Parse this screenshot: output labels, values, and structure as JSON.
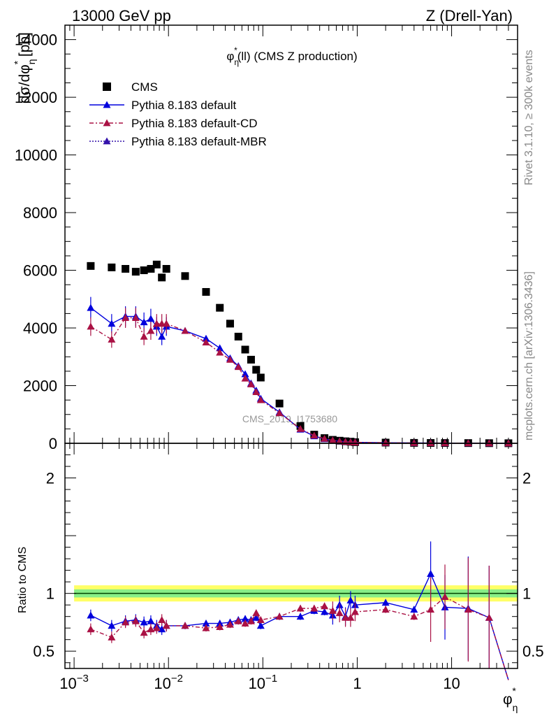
{
  "header": {
    "left": "13000 GeV pp",
    "right": "Z (Drell-Yan)"
  },
  "side_labels": {
    "top": "Rivet 3.1.10, ≥ 300k events",
    "bottom": "mcplots.cern.ch [arXiv:1306.3436]"
  },
  "watermark": "CMS_2019_I1753680",
  "chart_data": [
    {
      "id": "main",
      "type": "scatter",
      "title": "φ*η(ll) (CMS Z production)",
      "title_parts": {
        "base": "φ",
        "sup": "*",
        "sub": "η",
        "rest": "(ll) (CMS Z production)"
      },
      "ylabel": "dσ/dφ*η [pb]",
      "ylabel_parts": {
        "a": "dσ/dφ",
        "sup": "*",
        "sub": "η",
        "b": " [pb]"
      },
      "xscale": "log",
      "xlim": [
        0.0008,
        50
      ],
      "ylim": [
        0,
        14500
      ],
      "yticks": [
        0,
        2000,
        4000,
        6000,
        8000,
        10000,
        12000,
        14000
      ],
      "ytick_labels": [
        "0",
        "2000",
        "4000",
        "6000",
        "8000",
        "10000",
        "12000",
        "14000"
      ],
      "legend_position": "top-left",
      "series": [
        {
          "name": "CMS",
          "style": "data",
          "color": "#000000",
          "x": [
            0.0015,
            0.0025,
            0.0035,
            0.0045,
            0.0055,
            0.0065,
            0.0075,
            0.0085,
            0.0095,
            0.015,
            0.025,
            0.035,
            0.045,
            0.055,
            0.065,
            0.075,
            0.085,
            0.095,
            0.15,
            0.25,
            0.35,
            0.45,
            0.55,
            0.65,
            0.75,
            0.85,
            0.95,
            2,
            4,
            6,
            8.5,
            15,
            25,
            40
          ],
          "y": [
            6150,
            6100,
            6050,
            5950,
            6000,
            6050,
            6200,
            5750,
            6050,
            5800,
            5250,
            4700,
            4150,
            3700,
            3250,
            2900,
            2550,
            2280,
            1380,
            600,
            300,
            180,
            120,
            90,
            70,
            55,
            40,
            25,
            15,
            12,
            10,
            8,
            5,
            3
          ]
        },
        {
          "name": "Pythia 8.183 default",
          "style": "solid",
          "color": "#0000dd",
          "x": [
            0.0015,
            0.0025,
            0.0035,
            0.0045,
            0.0055,
            0.0065,
            0.0075,
            0.0085,
            0.0095,
            0.015,
            0.025,
            0.035,
            0.045,
            0.055,
            0.065,
            0.075,
            0.085,
            0.095,
            0.15,
            0.25,
            0.35,
            0.45,
            0.55,
            0.65,
            0.75,
            0.85,
            0.95,
            2,
            4,
            6,
            8.5,
            15,
            25,
            40
          ],
          "y": [
            4700,
            4150,
            4400,
            4400,
            4200,
            4320,
            4050,
            3700,
            4050,
            3900,
            3630,
            3300,
            2950,
            2680,
            2400,
            2080,
            1830,
            1550,
            1080,
            480,
            250,
            150,
            100,
            75,
            55,
            45,
            35,
            20,
            12,
            10,
            8,
            6,
            4,
            0
          ]
        },
        {
          "name": "Pythia 8.183 default-CD",
          "style": "dashdot",
          "color": "#aa1144",
          "x": [
            0.0015,
            0.0025,
            0.0035,
            0.0045,
            0.0055,
            0.0065,
            0.0075,
            0.0085,
            0.0095,
            0.015,
            0.025,
            0.035,
            0.045,
            0.055,
            0.065,
            0.075,
            0.085,
            0.095,
            0.15,
            0.25,
            0.35,
            0.45,
            0.55,
            0.65,
            0.75,
            0.85,
            0.95,
            2,
            4,
            6,
            8.5,
            15,
            25,
            40
          ],
          "y": [
            4050,
            3600,
            4350,
            4350,
            3700,
            3900,
            4150,
            4150,
            4150,
            3900,
            3500,
            3150,
            2900,
            2650,
            2250,
            2050,
            1780,
            1500,
            1050,
            500,
            270,
            160,
            105,
            75,
            55,
            45,
            35,
            20,
            12,
            10,
            8,
            6,
            4,
            0
          ]
        },
        {
          "name": "Pythia 8.183 default-MBR",
          "style": "dotted",
          "color": "#3311aa",
          "x": [],
          "y": []
        }
      ]
    },
    {
      "id": "ratio",
      "type": "line",
      "ylabel": "Ratio to CMS",
      "xlabel": "φ*η",
      "xlabel_parts": {
        "base": "φ",
        "sup": "*",
        "sub": "η"
      },
      "xscale": "log",
      "xlim": [
        0.0008,
        50
      ],
      "ylim": [
        0.35,
        2.3
      ],
      "yticks": [
        0.5,
        1,
        2
      ],
      "ytick_labels": [
        "0.5",
        "1",
        "2"
      ],
      "xticks": [
        0.001,
        0.01,
        0.1,
        1,
        10
      ],
      "xtick_labels": [
        "10^-3",
        "10^-2",
        "10^-1",
        "1",
        "10"
      ],
      "band_colors": {
        "outer": "#ffff66",
        "inner": "#88ee88",
        "line": "#004400"
      },
      "series": [
        {
          "name": "Pythia 8.183 default",
          "color": "#0000dd",
          "x": [
            0.0015,
            0.0025,
            0.0035,
            0.0045,
            0.0055,
            0.0065,
            0.0075,
            0.0085,
            0.0095,
            0.015,
            0.025,
            0.035,
            0.045,
            0.055,
            0.065,
            0.075,
            0.085,
            0.095,
            0.15,
            0.25,
            0.35,
            0.45,
            0.55,
            0.65,
            0.75,
            0.85,
            0.95,
            2,
            4,
            6,
            8.5,
            15,
            25,
            40
          ],
          "y": [
            0.81,
            0.72,
            0.76,
            0.77,
            0.75,
            0.76,
            0.72,
            0.69,
            0.72,
            0.72,
            0.74,
            0.74,
            0.75,
            0.77,
            0.78,
            0.77,
            0.79,
            0.72,
            0.8,
            0.8,
            0.85,
            0.84,
            0.81,
            0.9,
            0.8,
            0.94,
            0.9,
            0.92,
            0.86,
            1.17,
            0.88,
            0.87,
            0.79,
            0.1
          ]
        },
        {
          "name": "Pythia 8.183 default-CD",
          "color": "#aa1144",
          "x": [
            0.0015,
            0.0025,
            0.0035,
            0.0045,
            0.0055,
            0.0065,
            0.0075,
            0.0085,
            0.0095,
            0.015,
            0.025,
            0.035,
            0.045,
            0.055,
            0.065,
            0.075,
            0.085,
            0.095,
            0.15,
            0.25,
            0.35,
            0.45,
            0.55,
            0.65,
            0.75,
            0.85,
            0.95,
            2,
            4,
            6,
            8.5,
            15,
            25,
            40
          ],
          "y": [
            0.69,
            0.62,
            0.75,
            0.76,
            0.66,
            0.69,
            0.7,
            0.77,
            0.72,
            0.72,
            0.7,
            0.71,
            0.73,
            0.76,
            0.74,
            0.76,
            0.83,
            0.77,
            0.8,
            0.87,
            0.87,
            0.89,
            0.85,
            0.83,
            0.79,
            0.79,
            0.84,
            0.86,
            0.8,
            0.86,
            0.97,
            0.86,
            0.79,
            0.1
          ]
        }
      ]
    }
  ]
}
